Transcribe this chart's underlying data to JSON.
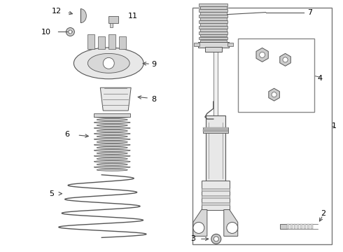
{
  "bg_color": "#ffffff",
  "line_color": "#555555",
  "label_color": "#000000",
  "fig_width": 4.9,
  "fig_height": 3.6,
  "dpi": 100
}
